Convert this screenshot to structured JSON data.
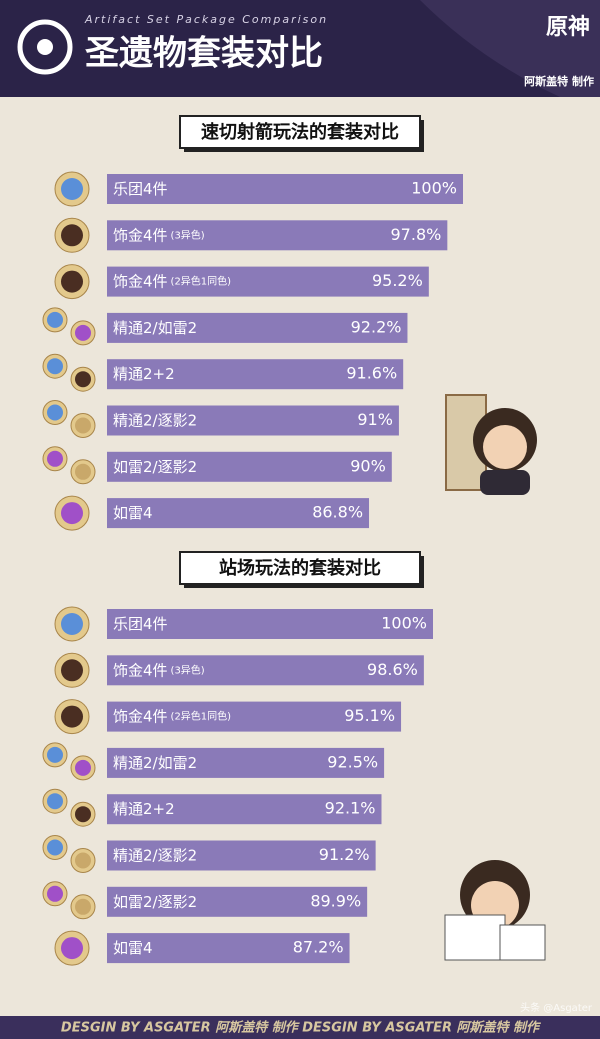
{
  "header": {
    "title": "圣遗物套装对比",
    "subtitle": "Artifact Set Package Comparison",
    "logo": "原神",
    "credit": "阿斯盖特 制作"
  },
  "chart_data": [
    {
      "type": "bar",
      "title": "速切射箭玩法的套装对比",
      "categories": [
        "乐团4件",
        "饰金4件",
        "饰金4件",
        "精通2/如雷2",
        "精通2+2",
        "精通2/逐影2",
        "如雷2/逐影2",
        "如雷4"
      ],
      "category_notes": [
        null,
        "(3异色)",
        "(2异色1同色)",
        null,
        null,
        null,
        null,
        null
      ],
      "values": [
        100,
        97.8,
        95.2,
        92.2,
        91.6,
        91,
        90,
        86.8
      ],
      "value_labels": [
        "100%",
        "97.8%",
        "95.2%",
        "92.2%",
        "91.6%",
        "91%",
        "90%",
        "86.8%"
      ],
      "color": "#8a7ab8",
      "xlim": [
        50,
        100
      ]
    },
    {
      "type": "bar",
      "title": "站场玩法的套装对比",
      "categories": [
        "乐团4件",
        "饰金4件",
        "饰金4件",
        "精通2/如雷2",
        "精通2+2",
        "精通2/逐影2",
        "如雷2/逐影2",
        "如雷4"
      ],
      "category_notes": [
        null,
        "(3异色)",
        "(2异色1同色)",
        null,
        null,
        null,
        null,
        null
      ],
      "values": [
        100,
        98.6,
        95.1,
        92.5,
        92.1,
        91.2,
        89.9,
        87.2
      ],
      "value_labels": [
        "100%",
        "98.6%",
        "95.1%",
        "92.5%",
        "92.1%",
        "91.2%",
        "89.9%",
        "87.2%"
      ],
      "color": "#8a7ab8",
      "xlim": [
        50,
        100
      ]
    }
  ],
  "footer": {
    "text": "DESGIN BY ASGATER  阿斯盖特 制作  DESGIN BY ASGATER  阿斯盖特 制作",
    "watermark": "头条 @Asgater"
  }
}
